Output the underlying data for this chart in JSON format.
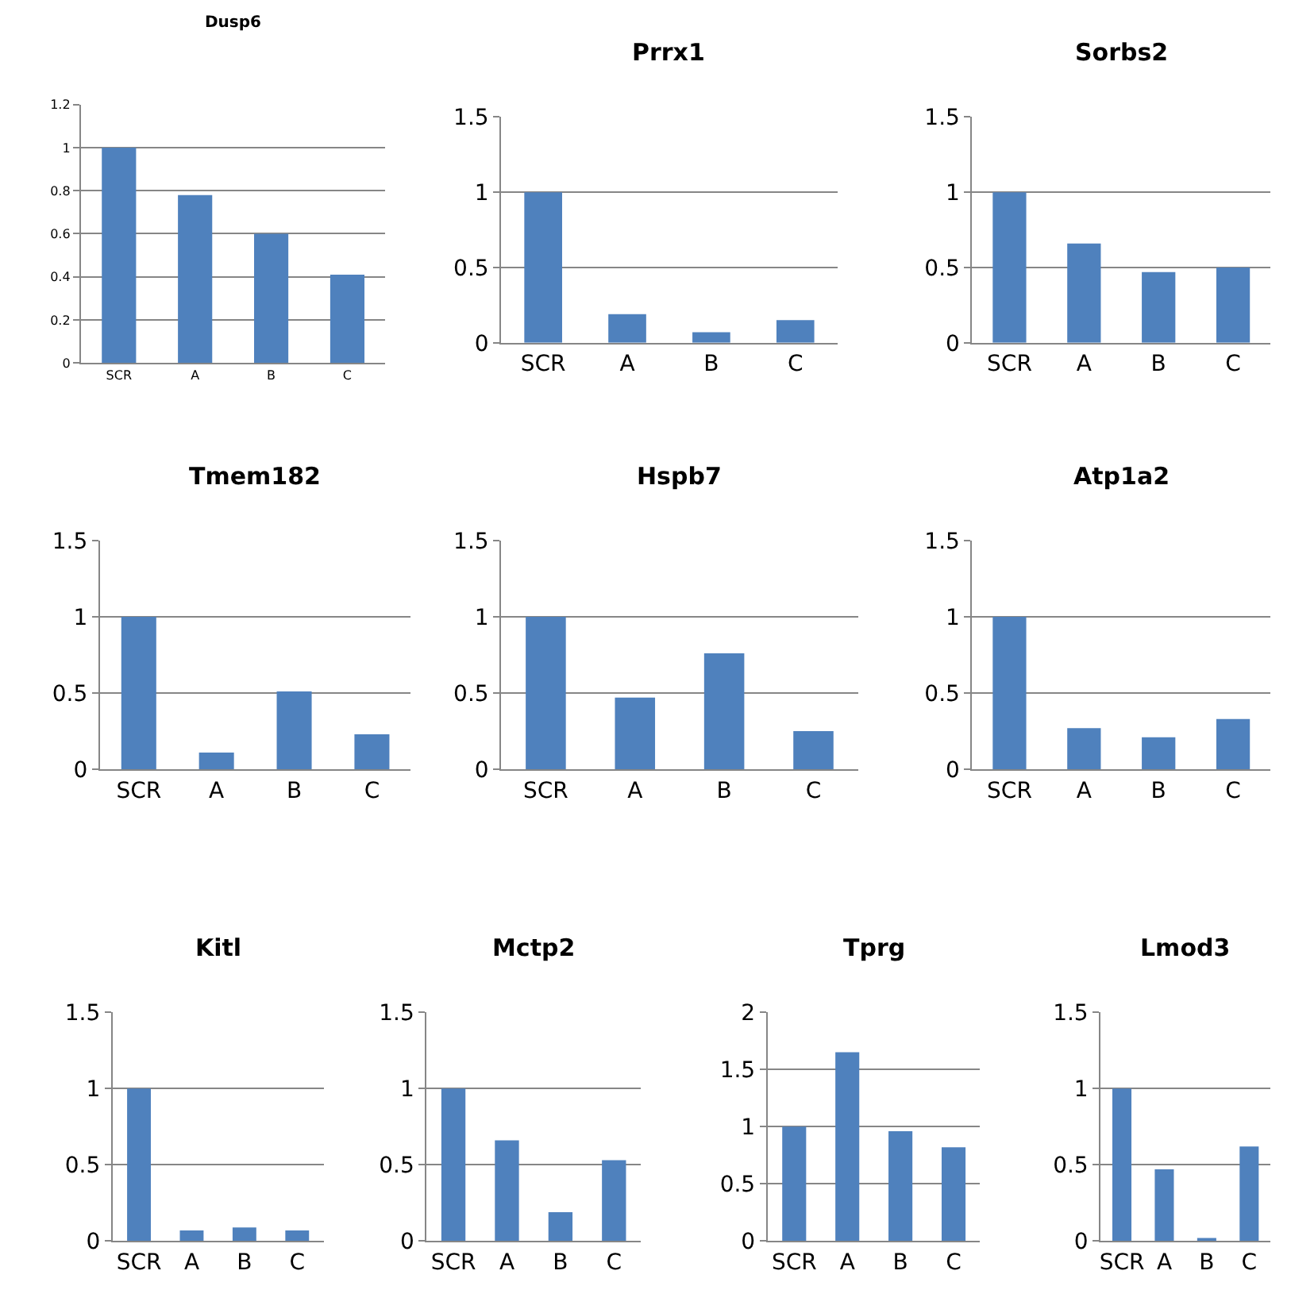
{
  "chart_data": [
    {
      "type": "bar",
      "title": "Dusp6",
      "categories": [
        "SCR",
        "A",
        "B",
        "C"
      ],
      "values": [
        1,
        0.78,
        0.6,
        0.41
      ],
      "color": "#4f81bd",
      "ylim": [
        0,
        1.2
      ],
      "yticks": [
        0,
        0.2,
        0.4,
        0.6,
        0.8,
        1,
        1.2
      ],
      "grid": "y"
    },
    {
      "type": "bar",
      "title": "Prrx1",
      "categories": [
        "SCR",
        "A",
        "B",
        "C"
      ],
      "values": [
        1,
        0.19,
        0.07,
        0.15
      ],
      "color": "#4f81bd",
      "ylim": [
        0,
        1.5
      ],
      "yticks": [
        0,
        0.5,
        1,
        1.5
      ],
      "grid": "y"
    },
    {
      "type": "bar",
      "title": "Sorbs2",
      "categories": [
        "SCR",
        "A",
        "B",
        "C"
      ],
      "values": [
        1,
        0.66,
        0.47,
        0.5
      ],
      "color": "#4f81bd",
      "ylim": [
        0,
        1.5
      ],
      "yticks": [
        0,
        0.5,
        1,
        1.5
      ],
      "grid": "y"
    },
    {
      "type": "bar",
      "title": "Tmem182",
      "categories": [
        "SCR",
        "A",
        "B",
        "C"
      ],
      "values": [
        1,
        0.11,
        0.51,
        0.23
      ],
      "color": "#4f81bd",
      "ylim": [
        0,
        1.5
      ],
      "yticks": [
        0,
        0.5,
        1,
        1.5
      ],
      "grid": "y"
    },
    {
      "type": "bar",
      "title": "Hspb7",
      "categories": [
        "SCR",
        "A",
        "B",
        "C"
      ],
      "values": [
        1,
        0.47,
        0.76,
        0.25
      ],
      "color": "#4f81bd",
      "ylim": [
        0,
        1.5
      ],
      "yticks": [
        0,
        0.5,
        1,
        1.5
      ],
      "grid": "y"
    },
    {
      "type": "bar",
      "title": "Atp1a2",
      "categories": [
        "SCR",
        "A",
        "B",
        "C"
      ],
      "values": [
        1,
        0.27,
        0.21,
        0.33
      ],
      "color": "#4f81bd",
      "ylim": [
        0,
        1.5
      ],
      "yticks": [
        0,
        0.5,
        1,
        1.5
      ],
      "grid": "y"
    },
    {
      "type": "bar",
      "title": "Kitl",
      "categories": [
        "SCR",
        "A",
        "B",
        "C"
      ],
      "values": [
        1,
        0.07,
        0.09,
        0.07
      ],
      "color": "#4f81bd",
      "ylim": [
        0,
        1.5
      ],
      "yticks": [
        0,
        0.5,
        1,
        1.5
      ],
      "grid": "y"
    },
    {
      "type": "bar",
      "title": "Mctp2",
      "categories": [
        "SCR",
        "A",
        "B",
        "C"
      ],
      "values": [
        1,
        0.66,
        0.19,
        0.53
      ],
      "color": "#4f81bd",
      "ylim": [
        0,
        1.5
      ],
      "yticks": [
        0,
        0.5,
        1,
        1.5
      ],
      "grid": "y"
    },
    {
      "type": "bar",
      "title": "Tprg",
      "categories": [
        "SCR",
        "A",
        "B",
        "C"
      ],
      "values": [
        1,
        1.65,
        0.96,
        0.82
      ],
      "color": "#4f81bd",
      "ylim": [
        0,
        2
      ],
      "yticks": [
        0,
        0.5,
        1,
        1.5,
        2
      ],
      "grid": "y"
    },
    {
      "type": "bar",
      "title": "Lmod3",
      "categories": [
        "SCR",
        "A",
        "B",
        "C"
      ],
      "values": [
        1,
        0.47,
        0.02,
        0.62
      ],
      "color": "#4f81bd",
      "ylim": [
        0,
        1.5
      ],
      "yticks": [
        0,
        0.5,
        1,
        1.5
      ],
      "grid": "y"
    }
  ]
}
